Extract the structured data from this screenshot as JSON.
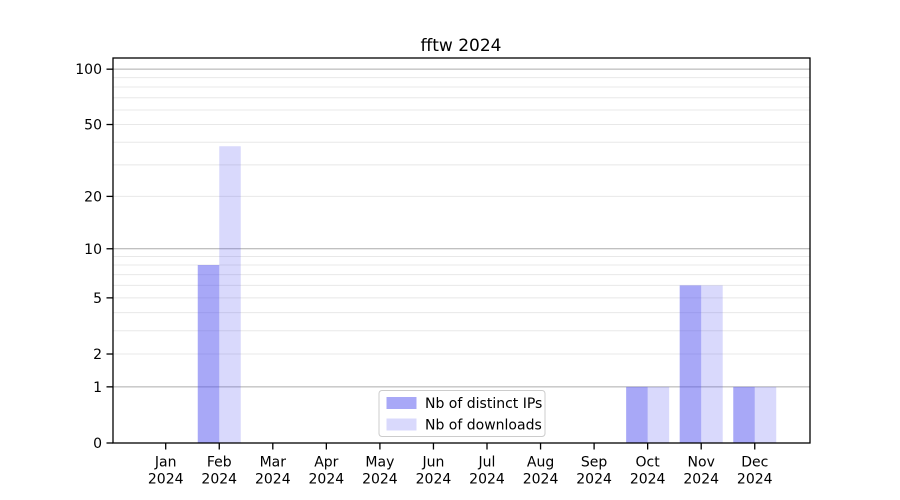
{
  "chart_data": {
    "type": "bar",
    "title": "fftw 2024",
    "categories": [
      "Jan",
      "Feb",
      "Mar",
      "Apr",
      "May",
      "Jun",
      "Jul",
      "Aug",
      "Sep",
      "Oct",
      "Nov",
      "Dec"
    ],
    "category_subline": "2024",
    "series": [
      {
        "name": "Nb of distinct IPs",
        "values": [
          0,
          8,
          0,
          0,
          0,
          0,
          0,
          0,
          0,
          1,
          6,
          1
        ],
        "alpha": 0.5
      },
      {
        "name": "Nb of downloads",
        "values": [
          0,
          38,
          0,
          0,
          0,
          0,
          0,
          0,
          0,
          1,
          6,
          1
        ],
        "alpha": 0.22
      }
    ],
    "xlabel": "",
    "ylabel": "",
    "scale": "log1p",
    "ylim": [
      0,
      115
    ],
    "ytick_labels": [
      100,
      50,
      20,
      10,
      5,
      2,
      1,
      0
    ],
    "major_gridlines": [
      1,
      10,
      100
    ],
    "minor_gridlines": [
      2,
      3,
      4,
      5,
      6,
      7,
      8,
      9,
      20,
      30,
      40,
      50,
      60,
      70,
      80,
      90
    ],
    "grid": "on",
    "legend": {
      "position": "lower center",
      "items": [
        "Nb of distinct IPs",
        "Nb of downloads"
      ]
    },
    "colors": {
      "bar_base": "#5252f0",
      "bar_distinct_ips_rendered": "#a8a8f7",
      "bar_downloads_rendered": "#d9d9fa",
      "grid_major": "#acacac",
      "grid_minor": "#e8e8e8",
      "axis": "#000000",
      "text": "#000000",
      "legend_border": "#cccccc",
      "background": "#ffffff"
    }
  }
}
